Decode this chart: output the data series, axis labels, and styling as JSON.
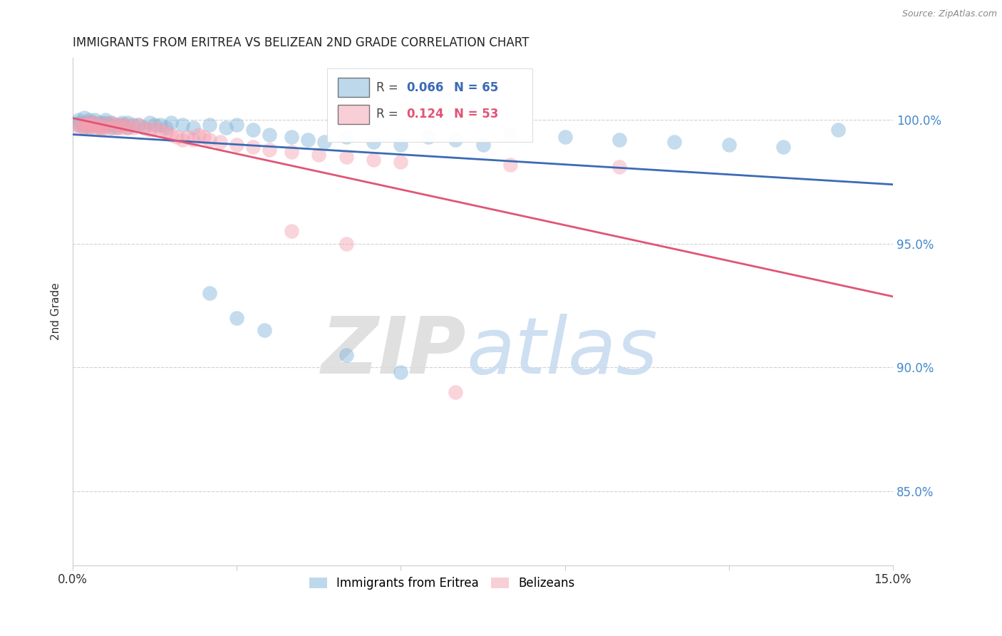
{
  "title": "IMMIGRANTS FROM ERITREA VS BELIZEAN 2ND GRADE CORRELATION CHART",
  "source": "Source: ZipAtlas.com",
  "ylabel": "2nd Grade",
  "legend_label_blue": "Immigrants from Eritrea",
  "legend_label_pink": "Belizeans",
  "r_blue": 0.066,
  "n_blue": 65,
  "r_pink": 0.124,
  "n_pink": 53,
  "xmin": 0.0,
  "xmax": 0.15,
  "ymin": 0.82,
  "ymax": 1.025,
  "yticks": [
    0.85,
    0.9,
    0.95,
    1.0
  ],
  "ytick_labels": [
    "85.0%",
    "90.0%",
    "95.0%",
    "100.0%"
  ],
  "xticks": [
    0.0,
    0.03,
    0.06,
    0.09,
    0.12,
    0.15
  ],
  "xtick_labels": [
    "0.0%",
    "",
    "",
    "",
    "",
    "15.0%"
  ],
  "blue_color": "#7EB3D8",
  "pink_color": "#F4A0B0",
  "blue_line_color": "#3B6BB5",
  "pink_line_color": "#E05575",
  "watermark_zip": "ZIP",
  "watermark_atlas": "atlas",
  "watermark_color": "#C8DCF0",
  "blue_x": [
    0.001,
    0.001,
    0.001,
    0.002,
    0.002,
    0.002,
    0.002,
    0.003,
    0.003,
    0.003,
    0.003,
    0.004,
    0.004,
    0.004,
    0.005,
    0.005,
    0.005,
    0.006,
    0.006,
    0.006,
    0.007,
    0.007,
    0.007,
    0.008,
    0.008,
    0.009,
    0.009,
    0.01,
    0.01,
    0.011,
    0.012,
    0.013,
    0.014,
    0.015,
    0.016,
    0.017,
    0.018,
    0.02,
    0.022,
    0.025,
    0.028,
    0.03,
    0.033,
    0.036,
    0.04,
    0.043,
    0.046,
    0.05,
    0.055,
    0.06,
    0.065,
    0.07,
    0.075,
    0.08,
    0.09,
    0.1,
    0.11,
    0.12,
    0.13,
    0.14,
    0.025,
    0.03,
    0.035,
    0.05,
    0.06
  ],
  "blue_y": [
    0.999,
    0.998,
    1.0,
    0.997,
    0.999,
    1.001,
    0.998,
    0.998,
    0.999,
    1.0,
    0.997,
    0.998,
    0.999,
    1.0,
    0.998,
    0.999,
    0.997,
    0.998,
    0.999,
    1.0,
    0.997,
    0.998,
    0.999,
    0.998,
    0.997,
    0.999,
    0.998,
    0.997,
    0.999,
    0.998,
    0.998,
    0.997,
    0.999,
    0.998,
    0.998,
    0.997,
    0.999,
    0.998,
    0.997,
    0.998,
    0.997,
    0.998,
    0.996,
    0.994,
    0.993,
    0.992,
    0.991,
    0.993,
    0.991,
    0.99,
    0.993,
    0.992,
    0.99,
    0.994,
    0.993,
    0.992,
    0.991,
    0.99,
    0.989,
    0.996,
    0.93,
    0.92,
    0.915,
    0.905,
    0.898
  ],
  "pink_x": [
    0.001,
    0.001,
    0.002,
    0.002,
    0.002,
    0.003,
    0.003,
    0.003,
    0.004,
    0.004,
    0.004,
    0.005,
    0.005,
    0.005,
    0.006,
    0.006,
    0.007,
    0.007,
    0.008,
    0.008,
    0.009,
    0.009,
    0.01,
    0.01,
    0.011,
    0.012,
    0.013,
    0.014,
    0.015,
    0.016,
    0.017,
    0.018,
    0.019,
    0.02,
    0.021,
    0.022,
    0.023,
    0.024,
    0.025,
    0.027,
    0.03,
    0.033,
    0.036,
    0.04,
    0.045,
    0.05,
    0.055,
    0.06,
    0.08,
    0.1,
    0.04,
    0.05,
    0.07
  ],
  "pink_y": [
    0.998,
    0.997,
    0.998,
    0.997,
    0.999,
    0.997,
    0.998,
    0.999,
    0.997,
    0.998,
    0.999,
    0.997,
    0.998,
    0.996,
    0.997,
    0.998,
    0.997,
    0.999,
    0.997,
    0.998,
    0.997,
    0.998,
    0.997,
    0.998,
    0.997,
    0.998,
    0.997,
    0.996,
    0.997,
    0.996,
    0.995,
    0.994,
    0.993,
    0.992,
    0.993,
    0.992,
    0.994,
    0.993,
    0.992,
    0.991,
    0.99,
    0.989,
    0.988,
    0.987,
    0.986,
    0.985,
    0.984,
    0.983,
    0.982,
    0.981,
    0.955,
    0.95,
    0.89
  ]
}
